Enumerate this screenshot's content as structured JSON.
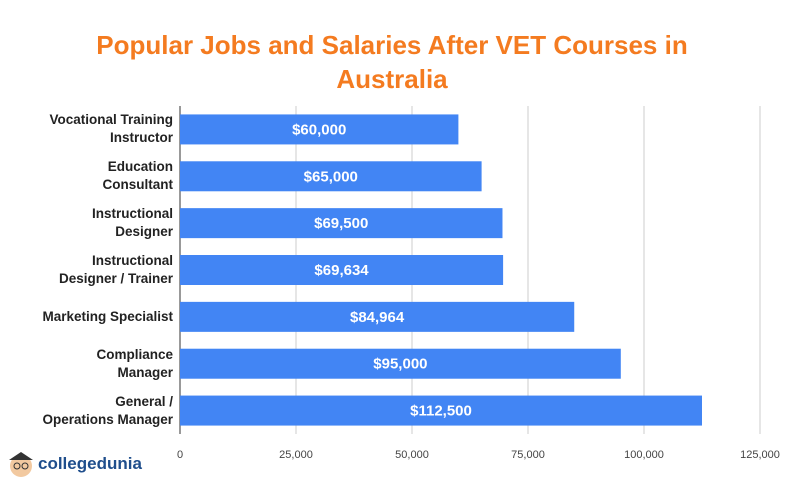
{
  "chart_data": {
    "type": "bar",
    "orientation": "horizontal",
    "title": "Popular Jobs and Salaries After VET Courses in Australia",
    "categories": [
      "Vocational Training\nInstructor",
      "Education\nConsultant",
      "Instructional\nDesigner",
      "Instructional\nDesigner / Trainer",
      "Marketing Specialist",
      "Compliance\nManager",
      "General /\nOperations Manager"
    ],
    "values": [
      60000,
      65000,
      69500,
      69634,
      84964,
      95000,
      112500
    ],
    "value_labels": [
      "$60,000",
      "$65,000",
      "$69,500",
      "$69,634",
      "$84,964",
      "$95,000",
      "$112,500"
    ],
    "color": "#4285f4",
    "xlim": [
      0,
      125000
    ],
    "xticks": [
      0,
      {
        "value": 25000,
        "label": "25,000"
      },
      {
        "value": 50000,
        "label": "50,000"
      },
      {
        "value": 75000,
        "label": "75,000"
      },
      {
        "value": 100000,
        "label": "100,000"
      },
      {
        "value": 125000,
        "label": "125,000"
      }
    ],
    "grid": true
  },
  "logo": "collegedunia"
}
